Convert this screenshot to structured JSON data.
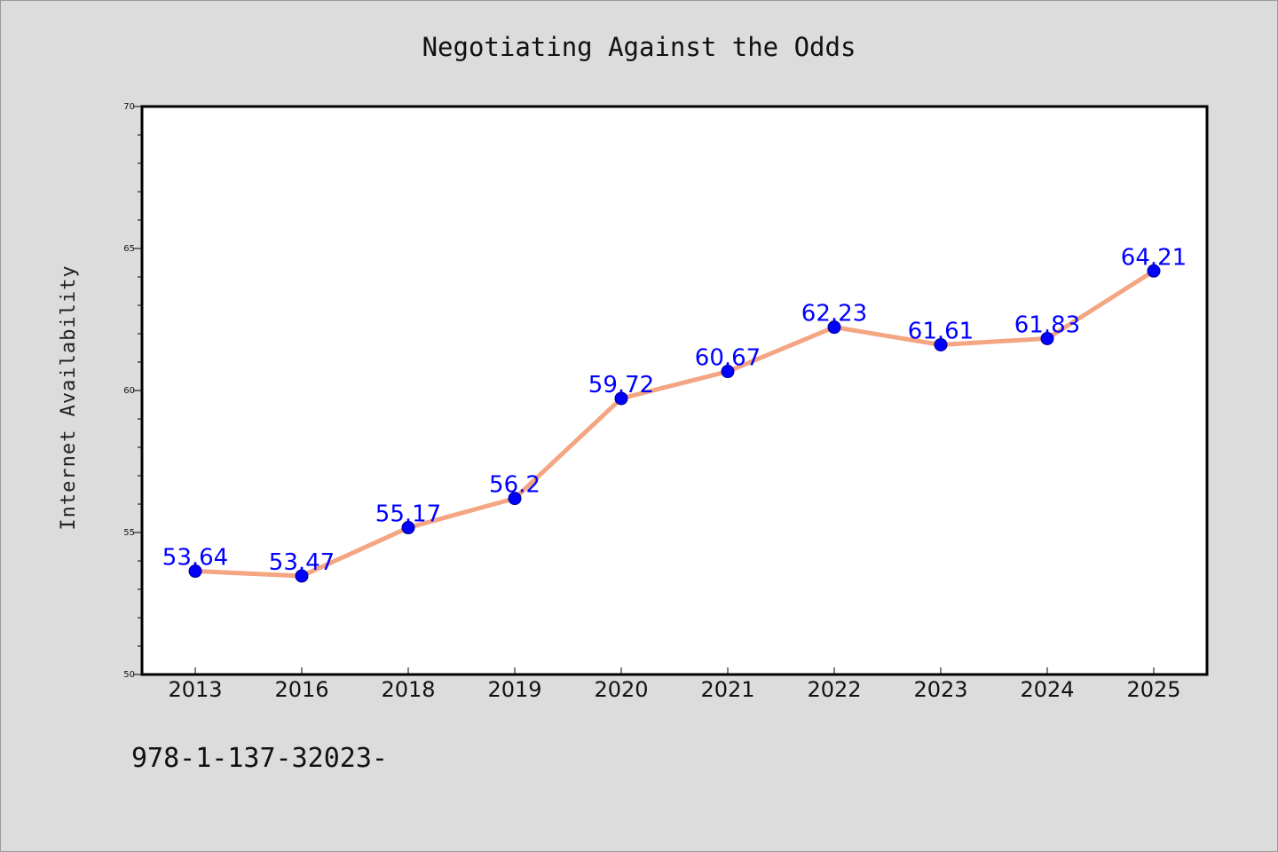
{
  "chart_data": {
    "type": "line",
    "title": "Negotiating Against the Odds",
    "xlabel": "",
    "ylabel": "Internet Availability",
    "categories": [
      "2013",
      "2016",
      "2018",
      "2019",
      "2020",
      "2021",
      "2022",
      "2023",
      "2024",
      "2025"
    ],
    "series": [
      {
        "values": [
          53.64,
          53.47,
          55.17,
          56.2,
          59.72,
          60.67,
          62.23,
          61.61,
          61.83,
          64.21
        ],
        "data_labels": [
          "53.64",
          "53.47",
          "55.17",
          "56.2",
          "59.72",
          "60.67",
          "62.23",
          "61.61",
          "61.83",
          "64.21"
        ],
        "line_color": "#f4a582",
        "marker_color": "#0000ff"
      }
    ],
    "ylim": [
      50,
      70
    ],
    "y_ticks": [
      "50",
      "55",
      "60",
      "65",
      "70"
    ],
    "grid": false,
    "legend": "none"
  },
  "footer_text": "978-1-137-32023-"
}
